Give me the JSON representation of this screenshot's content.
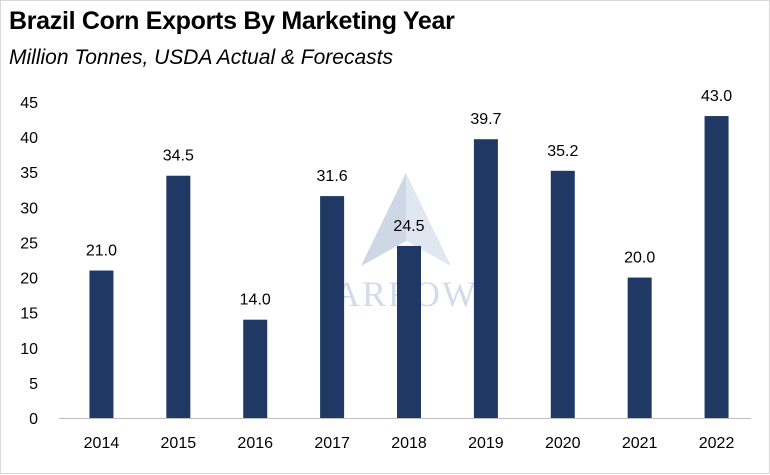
{
  "title": "Brazil Corn Exports By Marketing Year",
  "subtitle": "Million Tonnes, USDA Actual & Forecasts",
  "watermark": {
    "text": "ARROW"
  },
  "colors": {
    "bar": "#1f3864",
    "axis": "#bfbfbf",
    "watermark": "#c9d3e3"
  },
  "chart_data": {
    "type": "bar",
    "title": "Brazil Corn Exports By Marketing Year",
    "subtitle": "Million Tonnes, USDA Actual & Forecasts",
    "xlabel": "",
    "ylabel": "",
    "categories": [
      "2014",
      "2015",
      "2016",
      "2017",
      "2018",
      "2019",
      "2020",
      "2021",
      "2022"
    ],
    "values": [
      21.0,
      34.5,
      14.0,
      31.6,
      24.5,
      39.7,
      35.2,
      20.0,
      43.0
    ],
    "data_labels": [
      "21.0",
      "34.5",
      "14.0",
      "31.6",
      "24.5",
      "39.7",
      "35.2",
      "20.0",
      "43.0"
    ],
    "yticks": [
      0,
      5,
      10,
      15,
      20,
      25,
      30,
      35,
      40,
      45
    ],
    "ylim": [
      0,
      45
    ],
    "grid": false,
    "legend": "none"
  }
}
